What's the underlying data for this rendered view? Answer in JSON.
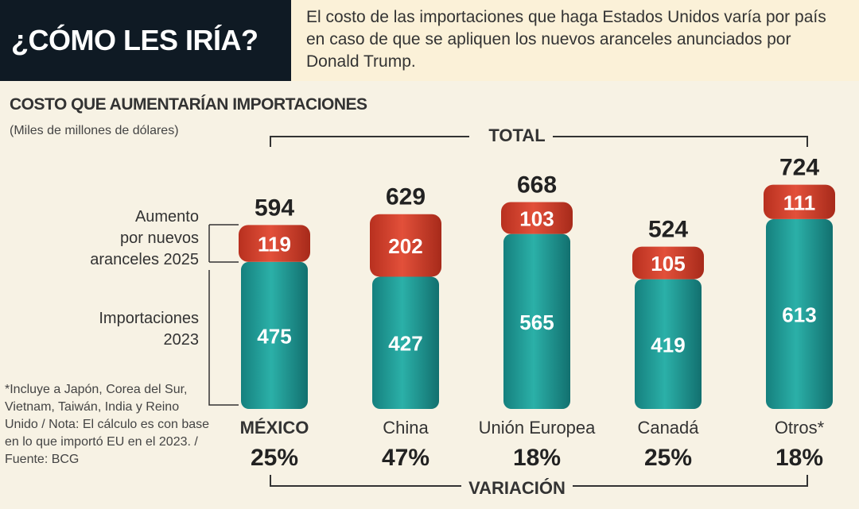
{
  "header": {
    "title": "¿CÓMO LES IRÍA?",
    "description": "El costo de las importaciones que haga Estados Unidos varía por país en caso de que se apliquen los nuevos aranceles anunciados por Donald Trump."
  },
  "chart_data": {
    "type": "bar",
    "stacked": true,
    "title": "COSTO QUE AUMENTARÍAN IMPORTACIONES",
    "subtitle": "(Miles de millones de dólares)",
    "top_bracket_label": "TOTAL",
    "bottom_bracket_label": "VARIACIÓN",
    "categories": [
      "MÉXICO",
      "China",
      "Unión Europea",
      "Canadá",
      "Otros*"
    ],
    "series": [
      {
        "name": "Importaciones 2023",
        "values": [
          475,
          427,
          565,
          419,
          613
        ],
        "color": "#1f9a96"
      },
      {
        "name": "Aumento por nuevos aranceles 2025",
        "values": [
          119,
          202,
          103,
          105,
          111
        ],
        "color": "#d6402c"
      }
    ],
    "totals": [
      594,
      629,
      668,
      524,
      724
    ],
    "variation": [
      "25%",
      "47%",
      "18%",
      "25%",
      "18%"
    ],
    "legend_labels": {
      "increase": [
        "Aumento",
        "por nuevos",
        "aranceles 2025"
      ],
      "imports": [
        "Importaciones",
        "2023"
      ]
    }
  },
  "footnote": "*Incluye a Japón, Corea del Sur, Vietnam, Taiwán, India y Reino Unido / Nota: El cálculo es con base en lo que importó EU en el 2023. / Fuente: BCG"
}
